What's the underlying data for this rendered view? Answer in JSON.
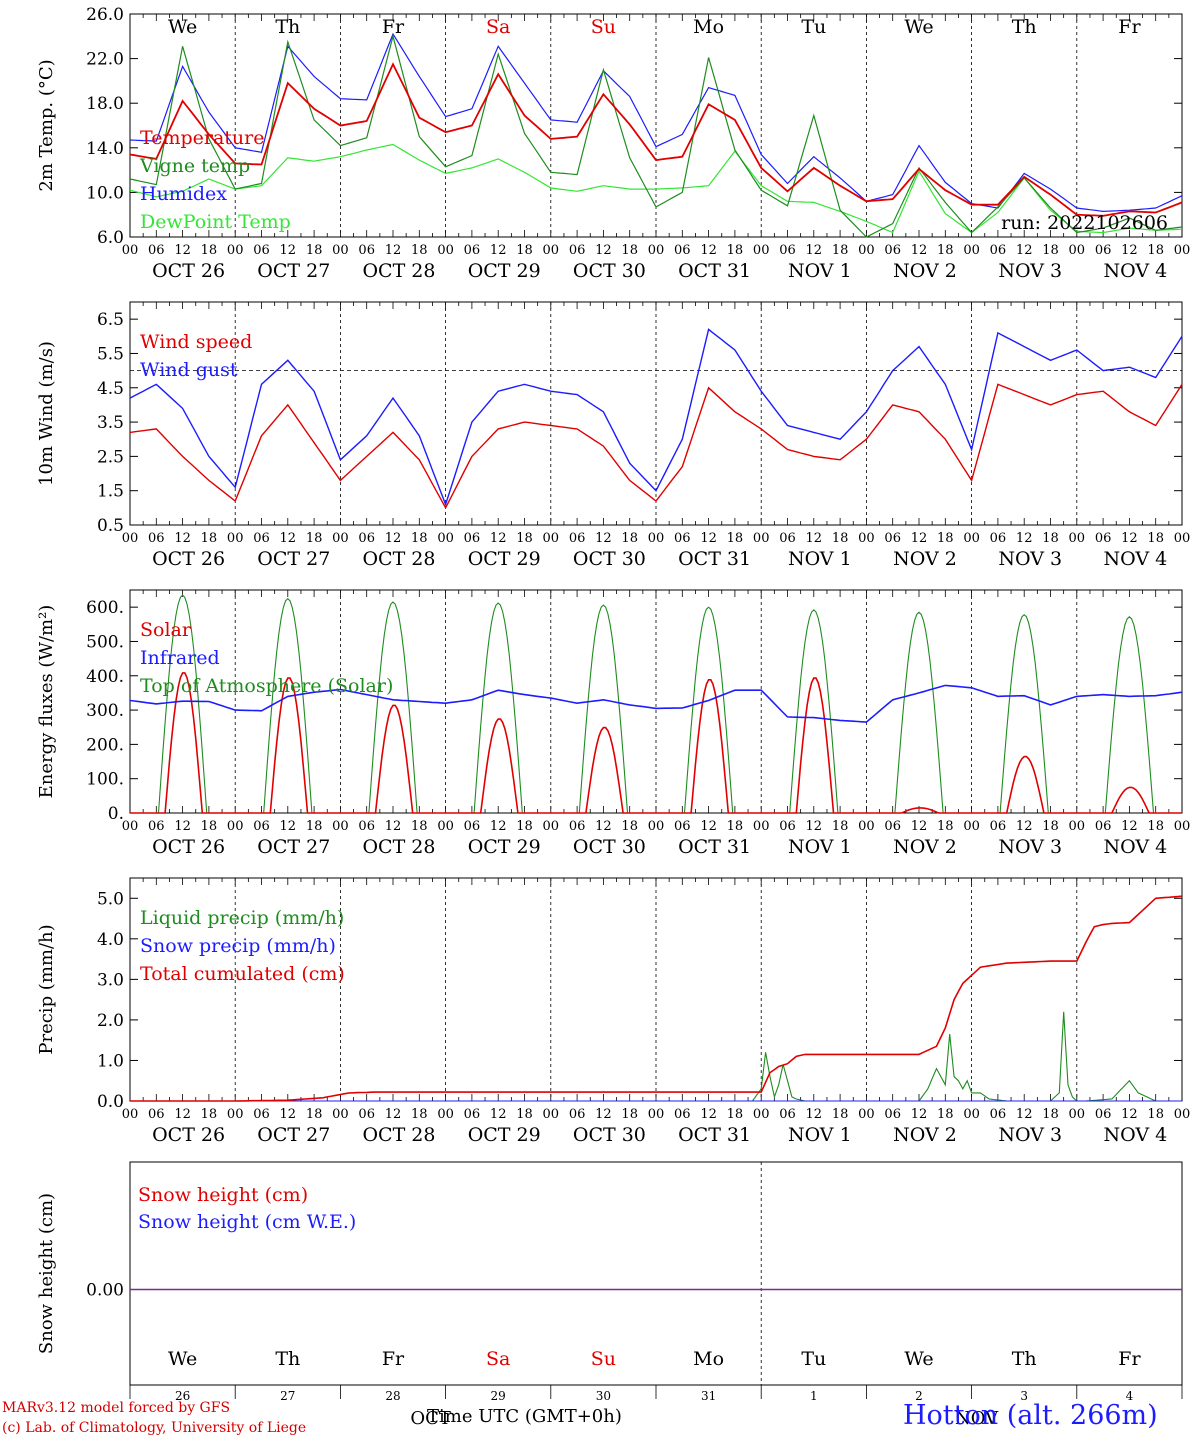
{
  "chart_data": [
    {
      "type": "line",
      "id": "temp",
      "ylabel": "2m Temp. (°C)",
      "ylim": [
        6.0,
        26.0
      ],
      "yticks": [
        "6.0",
        "10.0",
        "14.0",
        "18.0",
        "22.0",
        "26.0"
      ],
      "ytick_values": [
        6,
        10,
        14,
        18,
        22,
        26
      ],
      "weekday_labels": [
        "We",
        "Th",
        "Fr",
        "Sa",
        "Su",
        "Mo",
        "Tu",
        "We",
        "Th",
        "Fr"
      ],
      "weekday_colors": [
        "#000000",
        "#000000",
        "#000000",
        "#e00000",
        "#e00000",
        "#000000",
        "#000000",
        "#000000",
        "#000000",
        "#000000"
      ],
      "run_label": "run: 2022102606",
      "x_hours": [
        0,
        6,
        12,
        18,
        24,
        30,
        36,
        42,
        48,
        54,
        60,
        66,
        72,
        78,
        84,
        90,
        96,
        102,
        108,
        114,
        120,
        126,
        132,
        138,
        144,
        150,
        156,
        162,
        168,
        174,
        180,
        186,
        192,
        198,
        204,
        210,
        216,
        222,
        228,
        234,
        240
      ],
      "series": [
        {
          "name": "Temperature",
          "color": "#e00000",
          "values": [
            13.4,
            13.0,
            18.2,
            15.2,
            12.6,
            12.5,
            19.8,
            17.5,
            16.0,
            16.4,
            21.5,
            16.7,
            15.4,
            16.0,
            20.6,
            16.9,
            14.8,
            15.0,
            18.8,
            16.1,
            12.9,
            13.2,
            17.9,
            16.5,
            12.2,
            10.1,
            12.2,
            10.6,
            9.2,
            9.4,
            12.1,
            10.2,
            8.9,
            8.9,
            11.4,
            9.8,
            8.0,
            7.9,
            8.3,
            8.2,
            9.1
          ]
        },
        {
          "name": "Vigne temp",
          "color": "#1e8c1e",
          "values": [
            11.2,
            10.7,
            23.1,
            14.8,
            10.3,
            10.8,
            23.5,
            16.5,
            14.2,
            14.9,
            24.0,
            15.0,
            12.3,
            13.3,
            22.4,
            15.3,
            11.8,
            11.6,
            21.0,
            13.1,
            8.7,
            10.0,
            22.1,
            13.8,
            10.2,
            8.8,
            16.9,
            8.4,
            6.0,
            7.2,
            12.2,
            9.1,
            6.4,
            8.7,
            11.3,
            8.6,
            6.4,
            6.8,
            7.7,
            6.6,
            6.9
          ]
        },
        {
          "name": "Humidex",
          "color": "#1c1cff",
          "values": [
            14.7,
            14.6,
            21.3,
            17.2,
            14.0,
            13.6,
            23.1,
            20.4,
            18.4,
            18.3,
            24.2,
            20.4,
            16.8,
            17.5,
            23.1,
            19.8,
            16.5,
            16.3,
            20.9,
            18.6,
            14.1,
            15.2,
            19.4,
            18.7,
            13.4,
            10.8,
            13.2,
            11.3,
            9.2,
            9.8,
            14.2,
            10.9,
            9.0,
            8.6,
            11.7,
            10.3,
            8.6,
            8.3,
            8.4,
            8.6,
            9.7
          ]
        },
        {
          "name": "DewPoint Temp",
          "color": "#33e633",
          "values": [
            10.2,
            9.6,
            10.1,
            11.2,
            10.3,
            10.6,
            13.1,
            12.8,
            13.2,
            13.8,
            14.3,
            12.9,
            11.7,
            12.2,
            13.0,
            11.8,
            10.4,
            10.1,
            10.6,
            10.3,
            10.3,
            10.4,
            10.6,
            13.7,
            10.6,
            9.2,
            9.1,
            8.3,
            7.4,
            6.4,
            11.9,
            8.1,
            6.4,
            8.2,
            11.3,
            8.4,
            6.5,
            6.4,
            6.8,
            6.6,
            6.7
          ]
        }
      ]
    },
    {
      "type": "line",
      "id": "wind",
      "ylabel": "10m Wind (m/s)",
      "ylim": [
        0.5,
        7.0
      ],
      "yticks": [
        "0.5",
        "1.5",
        "2.5",
        "3.5",
        "4.5",
        "5.5",
        "6.5"
      ],
      "ytick_values": [
        0.5,
        1.5,
        2.5,
        3.5,
        4.5,
        5.5,
        6.5
      ],
      "ref_line": 5.0,
      "x_hours": [
        0,
        6,
        12,
        18,
        24,
        30,
        36,
        42,
        48,
        54,
        60,
        66,
        72,
        78,
        84,
        90,
        96,
        102,
        108,
        114,
        120,
        126,
        132,
        138,
        144,
        150,
        156,
        162,
        168,
        174,
        180,
        186,
        192,
        198,
        204,
        210,
        216,
        222,
        228,
        234,
        240
      ],
      "series": [
        {
          "name": "Wind speed",
          "color": "#e00000",
          "values": [
            3.2,
            3.3,
            2.5,
            1.8,
            1.2,
            3.1,
            4.0,
            2.9,
            1.8,
            2.5,
            3.2,
            2.4,
            1.0,
            2.5,
            3.3,
            3.5,
            3.4,
            3.3,
            2.8,
            1.8,
            1.2,
            2.2,
            4.5,
            3.8,
            3.3,
            2.7,
            2.5,
            2.4,
            3.0,
            4.0,
            3.8,
            3.0,
            1.8,
            4.6,
            4.3,
            4.0,
            4.3,
            4.4,
            3.8,
            3.4,
            4.6
          ]
        },
        {
          "name": "Wind gust",
          "color": "#1c1cff",
          "values": [
            4.2,
            4.6,
            3.9,
            2.5,
            1.6,
            4.6,
            5.3,
            4.4,
            2.4,
            3.1,
            4.2,
            3.1,
            1.1,
            3.5,
            4.4,
            4.6,
            4.4,
            4.3,
            3.8,
            2.3,
            1.5,
            3.0,
            6.2,
            5.6,
            4.4,
            3.4,
            3.2,
            3.0,
            3.8,
            5.0,
            5.7,
            4.6,
            2.7,
            6.1,
            5.7,
            5.3,
            5.6,
            5.0,
            5.1,
            4.8,
            6.0
          ]
        }
      ]
    },
    {
      "type": "line",
      "id": "energy",
      "ylabel": "Energy fluxes (W/m²)",
      "ylim": [
        0,
        650
      ],
      "yticks": [
        "0.",
        "100.",
        "200.",
        "300.",
        "400.",
        "500.",
        "600."
      ],
      "ytick_values": [
        0,
        100,
        200,
        300,
        400,
        500,
        600
      ],
      "solar_peaks": [
        410,
        395,
        315,
        275,
        250,
        390,
        395,
        15,
        165,
        75
      ],
      "toa_peaks": [
        635,
        625,
        615,
        612,
        606,
        600,
        592,
        585,
        578,
        572
      ],
      "infrared": {
        "x_hours": [
          0,
          6,
          12,
          18,
          24,
          30,
          36,
          42,
          48,
          54,
          60,
          66,
          72,
          78,
          84,
          90,
          96,
          102,
          108,
          114,
          120,
          126,
          132,
          138,
          144,
          150,
          156,
          162,
          168,
          174,
          180,
          186,
          192,
          198,
          204,
          210,
          216,
          222,
          228,
          234,
          240
        ],
        "values": [
          328,
          318,
          326,
          325,
          300,
          298,
          340,
          352,
          360,
          345,
          330,
          325,
          320,
          330,
          358,
          345,
          335,
          320,
          330,
          315,
          305,
          306,
          328,
          358,
          358,
          280,
          278,
          270,
          265,
          330,
          350,
          372,
          365,
          340,
          342,
          315,
          340,
          345,
          340,
          342,
          352
        ]
      },
      "series": [
        {
          "name": "Solar",
          "color": "#e00000"
        },
        {
          "name": "Infrared",
          "color": "#1c1cff"
        },
        {
          "name": "Top of Atmosphere (Solar)",
          "color": "#1e8c1e"
        }
      ]
    },
    {
      "type": "line",
      "id": "precip",
      "ylabel": "Precip (mm/h)",
      "ylim": [
        0,
        5.5
      ],
      "yticks": [
        "0.0",
        "1.0",
        "2.0",
        "3.0",
        "4.0",
        "5.0"
      ],
      "ytick_values": [
        0,
        1,
        2,
        3,
        4,
        5
      ],
      "cumulated": {
        "x_hours": [
          0,
          24,
          36,
          44,
          50,
          56,
          144,
          146,
          148,
          150,
          152,
          154,
          180,
          184,
          186,
          188,
          190,
          194,
          200,
          210,
          216,
          218,
          220,
          222,
          224,
          228,
          234,
          240
        ],
        "values": [
          0,
          0,
          0.02,
          0.08,
          0.2,
          0.22,
          0.22,
          0.7,
          0.85,
          0.92,
          1.1,
          1.15,
          1.15,
          1.35,
          1.8,
          2.5,
          2.9,
          3.3,
          3.4,
          3.45,
          3.45,
          3.9,
          4.3,
          4.35,
          4.38,
          4.4,
          5.0,
          5.05
        ]
      },
      "liquid": {
        "x_hours": [
          0,
          142,
          144,
          145,
          146,
          147,
          148,
          149,
          150,
          151,
          152,
          154,
          180,
          182,
          184,
          186,
          187,
          188,
          189,
          190,
          191,
          192,
          194,
          196,
          200,
          210,
          212,
          213,
          214,
          215,
          216,
          218,
          224,
          228,
          230,
          232,
          234,
          240
        ],
        "values": [
          0,
          0,
          0.3,
          1.2,
          0.6,
          0.1,
          0.4,
          0.9,
          0.5,
          0.1,
          0.05,
          0,
          0,
          0.3,
          0.8,
          0.4,
          1.65,
          0.6,
          0.5,
          0.3,
          0.5,
          0.2,
          0.2,
          0.05,
          0,
          0,
          0.2,
          2.2,
          0.4,
          0.1,
          0,
          0,
          0.05,
          0.5,
          0.2,
          0.1,
          0,
          0
        ]
      },
      "series": [
        {
          "name": "Liquid precip (mm/h)",
          "color": "#1e8c1e"
        },
        {
          "name": "Snow precip (mm/h)",
          "color": "#1c1cff"
        },
        {
          "name": "Total cumulated (cm)",
          "color": "#e00000"
        }
      ]
    },
    {
      "type": "line",
      "id": "snow",
      "ylabel": "Snow height (cm)",
      "yticks": [
        "0.00"
      ],
      "ytick_values": [
        0
      ],
      "weekday_labels": [
        "We",
        "Th",
        "Fr",
        "Sa",
        "Su",
        "Mo",
        "Tu",
        "We",
        "Th",
        "Fr"
      ],
      "weekday_colors": [
        "#000000",
        "#000000",
        "#000000",
        "#e00000",
        "#e00000",
        "#000000",
        "#000000",
        "#000000",
        "#000000",
        "#000000"
      ],
      "day_numbers": [
        "26",
        "27",
        "28",
        "29",
        "30",
        "31",
        "1",
        "2",
        "3",
        "4"
      ],
      "series": [
        {
          "name": "Snow height (cm)",
          "color": "#e00000",
          "values": [
            0,
            0
          ]
        },
        {
          "name": "Snow height (cm W.E.)",
          "color": "#1c1cff",
          "values": [
            0,
            0
          ]
        }
      ]
    }
  ],
  "x_axis": {
    "hour_ticks": [
      "00",
      "06",
      "12",
      "18"
    ],
    "date_labels": [
      "OCT 26",
      "OCT 27",
      "OCT 28",
      "OCT 29",
      "OCT 30",
      "OCT 31",
      "NOV  1",
      "NOV  2",
      "NOV  3",
      "NOV  4"
    ],
    "month_left": "OCT",
    "month_right": "NOV",
    "title": "Time UTC (GMT+0h)"
  },
  "footer": {
    "credit_line1": "MARv3.12 model forced by GFS",
    "credit_line2": "(c) Lab. of Climatology, University of Liege",
    "station": "Hotton (alt. 266m)"
  }
}
